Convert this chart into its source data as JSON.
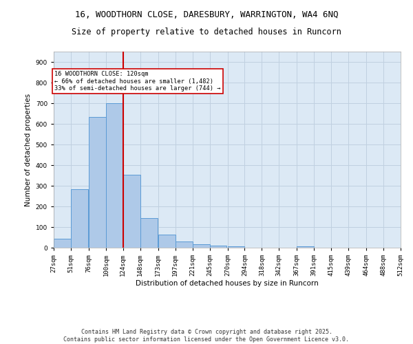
{
  "title1": "16, WOODTHORN CLOSE, DARESBURY, WARRINGTON, WA4 6NQ",
  "title2": "Size of property relative to detached houses in Runcorn",
  "xlabel": "Distribution of detached houses by size in Runcorn",
  "ylabel": "Number of detached properties",
  "bins": [
    27,
    51,
    76,
    100,
    124,
    148,
    173,
    197,
    221,
    245,
    270,
    294,
    318,
    342,
    367,
    391,
    415,
    439,
    464,
    488,
    512
  ],
  "counts": [
    42,
    283,
    632,
    700,
    355,
    145,
    63,
    30,
    16,
    11,
    7,
    0,
    0,
    0,
    8,
    0,
    0,
    0,
    0,
    0
  ],
  "bar_color": "#aec9e8",
  "bar_edge_color": "#5b9bd5",
  "grid_color": "#c0d0e0",
  "background_color": "#dce9f5",
  "vline_x": 124,
  "vline_color": "#cc0000",
  "annotation_text": "16 WOODTHORN CLOSE: 120sqm\n← 66% of detached houses are smaller (1,482)\n33% of semi-detached houses are larger (744) →",
  "ylim": [
    0,
    950
  ],
  "yticks": [
    0,
    100,
    200,
    300,
    400,
    500,
    600,
    700,
    800,
    900
  ],
  "tick_labels": [
    "27sqm",
    "51sqm",
    "76sqm",
    "100sqm",
    "124sqm",
    "148sqm",
    "173sqm",
    "197sqm",
    "221sqm",
    "245sqm",
    "270sqm",
    "294sqm",
    "318sqm",
    "342sqm",
    "367sqm",
    "391sqm",
    "415sqm",
    "439sqm",
    "464sqm",
    "488sqm",
    "512sqm"
  ],
  "footer1": "Contains HM Land Registry data © Crown copyright and database right 2025.",
  "footer2": "Contains public sector information licensed under the Open Government Licence v3.0.",
  "title_fontsize": 9,
  "subtitle_fontsize": 8.5,
  "axis_label_fontsize": 7.5,
  "tick_fontsize": 6.5,
  "footer_fontsize": 6.0
}
